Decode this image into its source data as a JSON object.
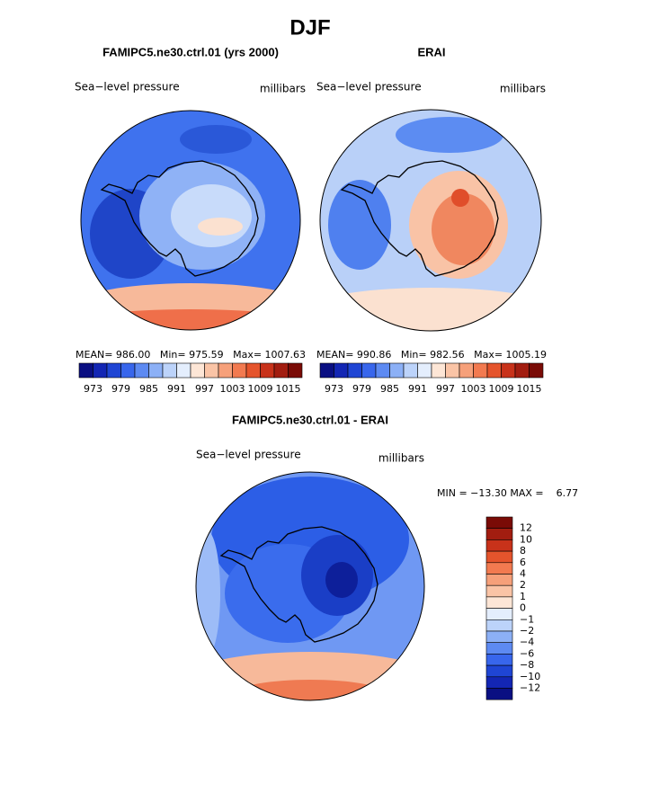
{
  "title": "DJF",
  "panels": [
    {
      "title": "FAMIPC5.ne30.ctrl.01 (yrs 2000)",
      "left_label": "Sea−level pressure",
      "right_label": "millibars",
      "stats": "MEAN= 986.00   Min= 975.59   Max= 1007.63",
      "colorbar_labels": [
        "973",
        "979",
        "985",
        "991",
        "997",
        "1003",
        "1009",
        "1015"
      ]
    },
    {
      "title": "ERAI",
      "left_label": "Sea−level pressure",
      "right_label": "millibars",
      "stats": "MEAN= 990.86   Min= 982.56   Max= 1005.19",
      "colorbar_labels": [
        "973",
        "979",
        "985",
        "991",
        "997",
        "1003",
        "1009",
        "1015"
      ]
    }
  ],
  "difference": {
    "title": "FAMIPC5.ne30.ctrl.01 - ERAI",
    "left_label": "Sea−level pressure",
    "right_label": "millibars",
    "stats": "MIN = −13.30 MAX =    6.77",
    "colorbar_labels": [
      "12",
      "10",
      "8",
      "6",
      "4",
      "2",
      "1",
      "0",
      "−1",
      "−2",
      "−4",
      "−6",
      "−8",
      "−10",
      "−12"
    ]
  }
}
